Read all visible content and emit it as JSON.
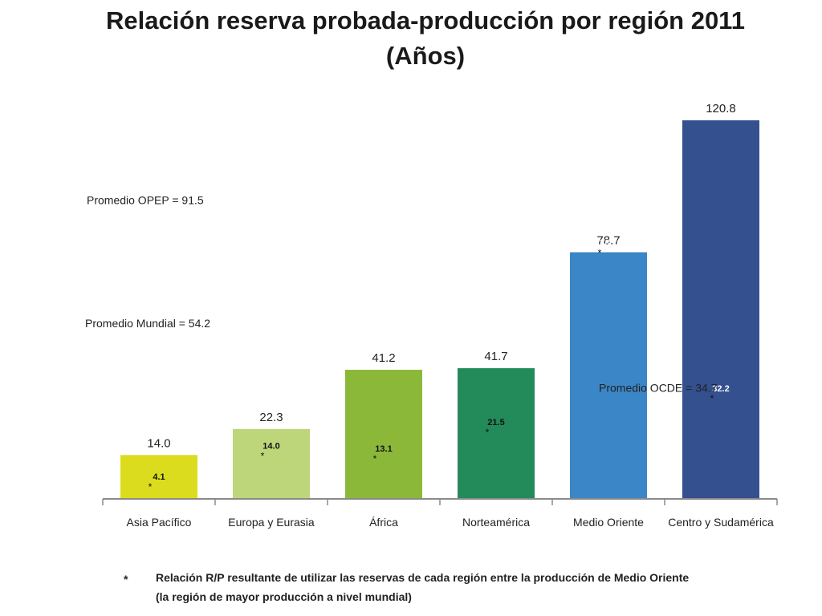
{
  "title": {
    "line1": "Relación reserva probada-producción por región 2011",
    "line2": "(Años)"
  },
  "references": [
    {
      "label": "Promedio OPEP = 91.5",
      "value": 91.5
    },
    {
      "label": "Promedio Mundial = 54.2",
      "value": 54.2
    },
    {
      "label": "Promedio OCDE = 34.7",
      "value": 34.7
    }
  ],
  "footnote": {
    "marker": "*",
    "text": "Relación R/P resultante de utilizar las reservas de cada región entre la producción de Medio Oriente (la región de mayor producción a nivel mundial)"
  },
  "colors": {
    "bars": [
      "#dcdc1e",
      "#bdd67a",
      "#8cb83a",
      "#238a5a",
      "#3b86c6",
      "#34508f"
    ]
  },
  "chart_data": {
    "type": "bar",
    "title": "Relación reserva probada-producción por región 2011",
    "subtitle": "(Años)",
    "categories": [
      "Asia Pacífico",
      "Europa y Eurasia",
      "África",
      "Norteamérica",
      "Medio Oriente",
      "Centro y Sudamérica"
    ],
    "series": [
      {
        "values": [
          14.0,
          22.3,
          41.2,
          41.7,
          78.7,
          120.8
        ],
        "labels": [
          "14.0",
          "22.3",
          "41.2",
          "41.7",
          "78.7",
          "120.8"
        ]
      },
      {
        "values": [
          4.1,
          14.0,
          13.1,
          21.5,
          78.7,
          32.2
        ],
        "labels": [
          "4.1",
          "14.0",
          "13.1",
          "21.5",
          "78.7",
          "32.2"
        ],
        "marker": "*"
      }
    ],
    "ylim": [
      0,
      125
    ],
    "grid": false,
    "legend": "none"
  }
}
